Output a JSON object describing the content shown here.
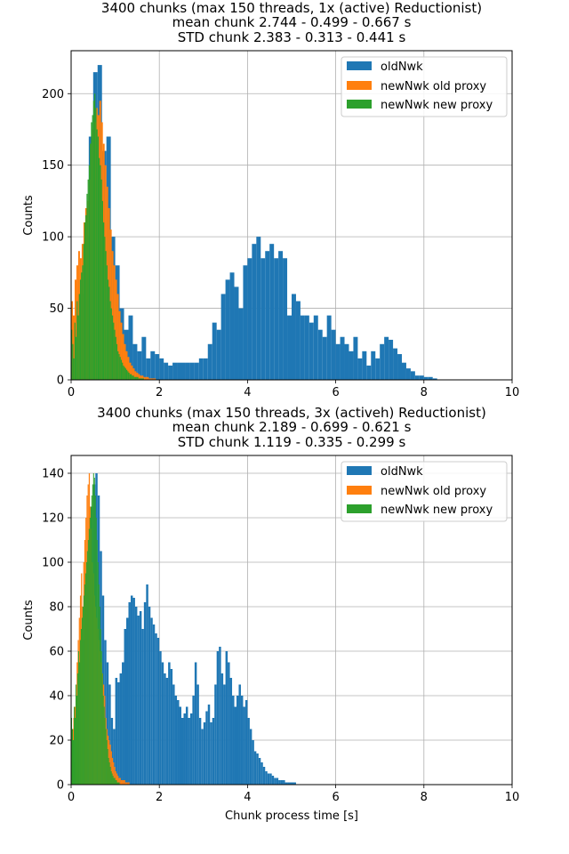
{
  "figure": {
    "xlabel_bottom": "Chunk process time [s]"
  },
  "chart_data": [
    {
      "type": "bar",
      "title_lines": [
        "3400 chunks (max 150 threads, 1x (active) Reductionist)",
        "mean chunk 2.744 - 0.499 - 0.667 s",
        "STD chunk 2.383 - 0.313 - 0.441 s"
      ],
      "xlabel": "",
      "ylabel": "Counts",
      "xlim": [
        0,
        10
      ],
      "ylim": [
        0,
        230
      ],
      "xticks": [
        0,
        2,
        4,
        6,
        8,
        10
      ],
      "yticks": [
        0,
        50,
        100,
        150,
        200
      ],
      "grid": true,
      "legend_loc": "upper right",
      "series": [
        {
          "name": "oldNwk",
          "color": "#1f77b4",
          "bin_width": 0.1,
          "x_start": 0.0,
          "values": [
            15,
            35,
            60,
            100,
            170,
            215,
            220,
            160,
            170,
            100,
            80,
            50,
            35,
            45,
            25,
            20,
            30,
            15,
            20,
            18,
            15,
            12,
            10,
            12,
            12,
            12,
            12,
            12,
            12,
            15,
            15,
            25,
            40,
            35,
            60,
            70,
            75,
            65,
            50,
            80,
            85,
            95,
            100,
            85,
            90,
            95,
            85,
            90,
            85,
            45,
            60,
            55,
            45,
            45,
            40,
            45,
            35,
            30,
            45,
            35,
            25,
            30,
            25,
            20,
            30,
            15,
            20,
            10,
            20,
            15,
            25,
            30,
            28,
            22,
            18,
            12,
            8,
            6,
            3,
            3,
            2,
            2,
            1,
            0,
            0,
            0,
            0,
            0,
            0,
            0,
            0,
            0,
            0,
            0,
            0,
            0,
            0,
            0,
            0,
            0
          ]
        },
        {
          "name": "newNwk old proxy",
          "color": "#ff7f0e",
          "bin_width": 0.04,
          "x_start": 0.0,
          "values": [
            55,
            45,
            70,
            80,
            90,
            85,
            95,
            110,
            120,
            125,
            140,
            165,
            175,
            180,
            190,
            185,
            195,
            180,
            165,
            150,
            135,
            120,
            105,
            90,
            80,
            70,
            60,
            48,
            40,
            32,
            25,
            20,
            16,
            12,
            10,
            8,
            6,
            5,
            4,
            3,
            3,
            2,
            2,
            2,
            1,
            1,
            1,
            1,
            0,
            0,
            0,
            0,
            0,
            0,
            0,
            0,
            0,
            0,
            0,
            0,
            0,
            0,
            0,
            0,
            0,
            0,
            0,
            0,
            0,
            0,
            0,
            0,
            0,
            0,
            0
          ]
        },
        {
          "name": "newNwk new proxy",
          "color": "#2ca02c",
          "bin_width": 0.025,
          "x_start": 0.0,
          "values": [
            35,
            25,
            15,
            40,
            30,
            55,
            45,
            60,
            70,
            75,
            80,
            95,
            110,
            115,
            130,
            140,
            150,
            165,
            180,
            185,
            195,
            200,
            190,
            175,
            170,
            155,
            150,
            140,
            125,
            110,
            100,
            90,
            80,
            70,
            65,
            55,
            50,
            45,
            40,
            35,
            30,
            25,
            20,
            18,
            16,
            14,
            12,
            10,
            9,
            8,
            7,
            6,
            5,
            4,
            4,
            3,
            3,
            2,
            2,
            2,
            2,
            1,
            1,
            1,
            1,
            1,
            0,
            0,
            0,
            0,
            0,
            0,
            0,
            0,
            0,
            0,
            0,
            0,
            0,
            0,
            0,
            0,
            0,
            0,
            0,
            0,
            0,
            0,
            0,
            0
          ]
        }
      ]
    },
    {
      "type": "bar",
      "title_lines": [
        "3400 chunks (max 150 threads, 3x (activeh) Reductionist)",
        "mean chunk 2.189 - 0.699 - 0.621 s",
        "STD chunk 1.119 - 0.335 - 0.299 s"
      ],
      "xlabel": "Chunk process time [s]",
      "ylabel": "Counts",
      "xlim": [
        0,
        10
      ],
      "ylim": [
        0,
        148
      ],
      "xticks": [
        0,
        2,
        4,
        6,
        8,
        10
      ],
      "yticks": [
        0,
        20,
        40,
        60,
        80,
        100,
        120,
        140
      ],
      "grid": true,
      "legend_loc": "upper right",
      "series": [
        {
          "name": "oldNwk",
          "color": "#1f77b4",
          "bin_width": 0.05,
          "x_start": 0.0,
          "values": [
            5,
            10,
            20,
            35,
            50,
            65,
            80,
            100,
            110,
            125,
            135,
            140,
            130,
            105,
            85,
            65,
            55,
            45,
            30,
            25,
            48,
            46,
            50,
            55,
            70,
            75,
            82,
            85,
            84,
            80,
            76,
            78,
            70,
            82,
            90,
            80,
            75,
            72,
            68,
            66,
            60,
            55,
            50,
            48,
            55,
            52,
            45,
            40,
            38,
            35,
            30,
            32,
            35,
            30,
            32,
            40,
            55,
            45,
            30,
            25,
            28,
            33,
            36,
            28,
            30,
            45,
            60,
            62,
            50,
            45,
            60,
            55,
            48,
            40,
            35,
            40,
            45,
            40,
            35,
            38,
            30,
            25,
            20,
            15,
            14,
            12,
            10,
            8,
            6,
            5,
            5,
            4,
            3,
            3,
            2,
            2,
            2,
            1,
            1,
            1,
            1,
            1,
            0,
            0,
            0,
            0,
            0,
            0,
            0,
            0,
            0,
            0,
            0,
            0,
            0,
            0,
            0,
            0,
            0,
            0,
            0,
            0,
            0,
            0,
            0,
            0,
            0,
            0,
            0,
            0,
            0,
            0,
            0,
            0,
            0,
            0,
            0,
            0,
            0,
            0,
            0,
            0,
            0,
            0,
            0,
            0,
            0,
            0,
            0,
            0,
            0,
            0,
            0,
            0,
            0,
            0,
            0,
            0,
            0,
            0,
            0,
            0,
            0,
            0,
            0,
            0,
            0,
            0,
            0,
            0,
            0,
            0,
            0,
            0,
            0,
            0,
            0,
            0,
            0,
            0,
            0,
            0,
            0,
            0,
            0,
            0,
            0,
            0,
            0,
            0,
            0,
            0,
            0,
            0,
            0,
            0,
            0,
            0,
            0,
            0
          ]
        },
        {
          "name": "newNwk old proxy",
          "color": "#ff7f0e",
          "bin_width": 0.025,
          "x_start": 0.0,
          "values": [
            20,
            25,
            30,
            35,
            45,
            55,
            65,
            75,
            85,
            95,
            80,
            100,
            110,
            120,
            130,
            135,
            140,
            125,
            115,
            100,
            95,
            85,
            80,
            75,
            70,
            65,
            60,
            55,
            50,
            45,
            40,
            30,
            25,
            22,
            20,
            18,
            15,
            12,
            10,
            8,
            6,
            5,
            4,
            3,
            3,
            2,
            2,
            2,
            2,
            1,
            1,
            1,
            1,
            0,
            0,
            0,
            0,
            0,
            0,
            0,
            0,
            0,
            0,
            0,
            0,
            0,
            0,
            0,
            0,
            0,
            0,
            0,
            0,
            0,
            0,
            0,
            0,
            0,
            0,
            0,
            0,
            0,
            0,
            0,
            0,
            0,
            0,
            0,
            0,
            0,
            0,
            0,
            0,
            0,
            0,
            0,
            0,
            0,
            0,
            0
          ]
        },
        {
          "name": "newNwk new proxy",
          "color": "#2ca02c",
          "bin_width": 0.02,
          "x_start": 0.0,
          "values": [
            30,
            25,
            20,
            35,
            30,
            45,
            40,
            50,
            60,
            55,
            65,
            70,
            75,
            80,
            85,
            90,
            95,
            100,
            105,
            110,
            115,
            120,
            125,
            130,
            135,
            140,
            138,
            130,
            120,
            110,
            100,
            90,
            80,
            70,
            60,
            50,
            40,
            35,
            30,
            25,
            20,
            16,
            12,
            10,
            8,
            6,
            5,
            4,
            3,
            3,
            2,
            2,
            1,
            1,
            1,
            0,
            0,
            0,
            0,
            0,
            0,
            0,
            0,
            0,
            0,
            0,
            0,
            0,
            0,
            0,
            0,
            0,
            0,
            0,
            0,
            0,
            0,
            0,
            0,
            0,
            0,
            0,
            0,
            0,
            0,
            0,
            0,
            0,
            0,
            0,
            0,
            0,
            0,
            0,
            0,
            0,
            0,
            0,
            0,
            0
          ]
        }
      ]
    }
  ]
}
